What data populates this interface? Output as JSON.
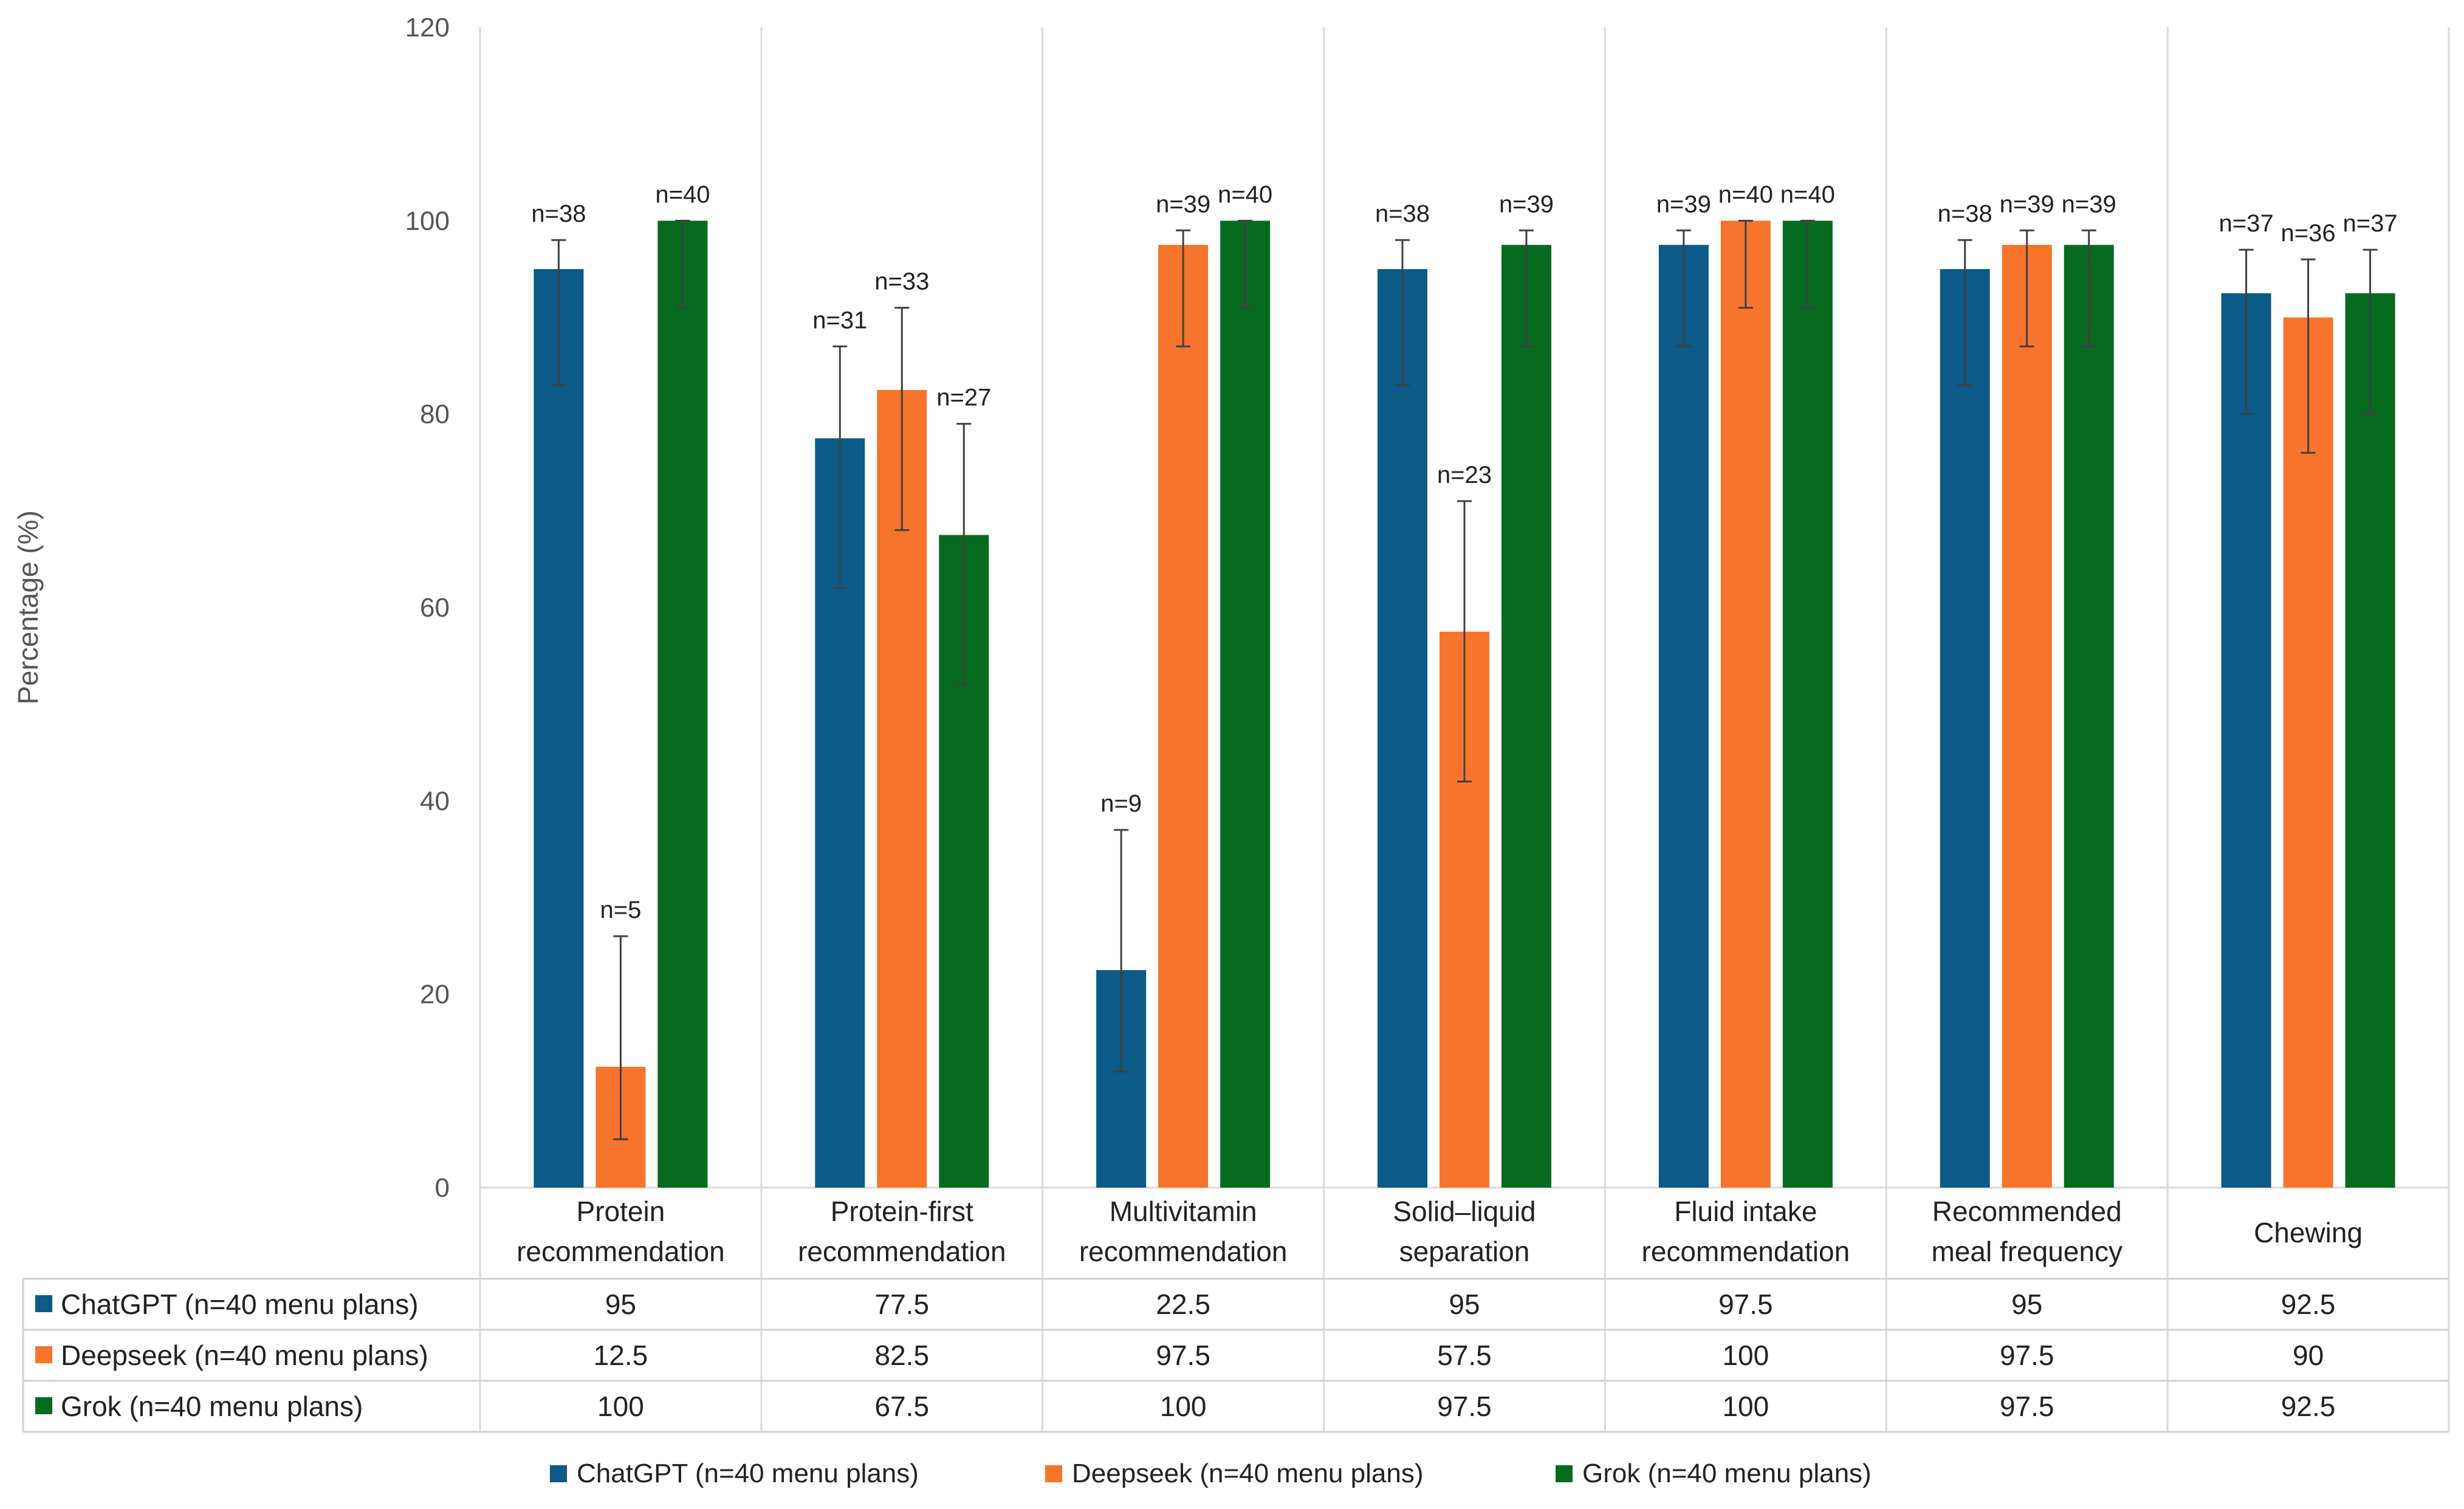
{
  "chart_data": {
    "type": "bar",
    "title": "",
    "xlabel": "",
    "ylabel": "Percentage (%)",
    "ylim": [
      0,
      120
    ],
    "yticks": [
      0,
      20,
      40,
      60,
      80,
      100,
      120
    ],
    "grid": "vertical category separators",
    "legend": "bottom-center",
    "categories": [
      [
        "Protein",
        "recommendation"
      ],
      [
        "Protein-first",
        "recommendation"
      ],
      [
        "Multivitamin",
        "recommendation"
      ],
      [
        "Solid–liquid",
        "separation"
      ],
      [
        "Fluid intake",
        "recommendation"
      ],
      [
        "Recommended",
        "meal frequency"
      ],
      [
        "Chewing"
      ]
    ],
    "series": [
      {
        "name": "ChatGPT (n=40 menu plans)",
        "color": "#0b5a87",
        "values": [
          95,
          77.5,
          22.5,
          95,
          97.5,
          95,
          92.5
        ],
        "display": [
          "95",
          "77.5",
          "22.5",
          "95",
          "97.5",
          "95",
          "92.5"
        ],
        "n_labels": [
          "n=38",
          "n=31",
          "n=9",
          "n=38",
          "n=39",
          "n=38",
          "n=37"
        ],
        "err_low": [
          83,
          62,
          12,
          83,
          87,
          83,
          80
        ],
        "err_high": [
          98,
          87,
          37,
          98,
          99,
          98,
          97
        ]
      },
      {
        "name": "Deepseek (n=40 menu plans)",
        "color": "#f6742b",
        "values": [
          12.5,
          82.5,
          97.5,
          57.5,
          100,
          97.5,
          90
        ],
        "display": [
          "12.5",
          "82.5",
          "97.5",
          "57.5",
          "100",
          "97.5",
          "90"
        ],
        "n_labels": [
          "n=5",
          "n=33",
          "n=39",
          "n=23",
          "n=40",
          "n=39",
          "n=36"
        ],
        "err_low": [
          5,
          68,
          87,
          42,
          91,
          87,
          76
        ],
        "err_high": [
          26,
          91,
          99,
          71,
          100,
          99,
          96
        ]
      },
      {
        "name": "Grok (n=40 menu plans)",
        "color": "#076b1f",
        "values": [
          100,
          67.5,
          100,
          97.5,
          100,
          97.5,
          92.5
        ],
        "display": [
          "100",
          "67.5",
          "100",
          "97.5",
          "100",
          "97.5",
          "92.5"
        ],
        "n_labels": [
          "n=40",
          "n=27",
          "n=40",
          "n=39",
          "n=40",
          "n=39",
          "n=37"
        ],
        "err_low": [
          91,
          52,
          91,
          87,
          91,
          87,
          80
        ],
        "err_high": [
          100,
          79,
          100,
          99,
          100,
          99,
          97
        ]
      }
    ]
  }
}
